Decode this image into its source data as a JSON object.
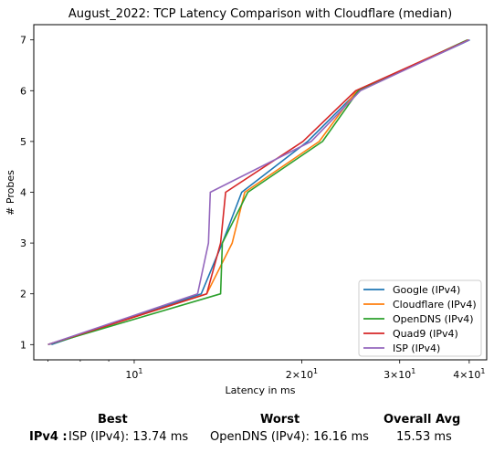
{
  "chart_data": {
    "type": "line",
    "title": "August_2022: TCP Latency Comparison with Cloudflare (median)",
    "xlabel": "Latency in ms",
    "ylabel": "# Probes",
    "xscale": "log",
    "xlim": [
      6.6,
      43
    ],
    "ylim": [
      0.7,
      7.3
    ],
    "xticks": [
      {
        "value": 10,
        "base": "10",
        "exp": "1"
      },
      {
        "value": 20,
        "base": "2×10",
        "exp": "1"
      },
      {
        "value": 30,
        "base": "3×10",
        "exp": "1"
      },
      {
        "value": 40,
        "base": "4×10",
        "exp": "1"
      }
    ],
    "yticks": [
      "1",
      "2",
      "3",
      "4",
      "5",
      "6",
      "7"
    ],
    "legend_position": "lower-right",
    "grid": false,
    "series": [
      {
        "name": "Google (IPv4)",
        "color": "#1f77b4",
        "points": [
          [
            7.1,
            1
          ],
          [
            13.2,
            2
          ],
          [
            14.4,
            3
          ],
          [
            15.6,
            4
          ],
          [
            20.5,
            5
          ],
          [
            25.3,
            6
          ],
          [
            40.1,
            7
          ]
        ]
      },
      {
        "name": "Cloudflare (IPv4)",
        "color": "#ff7f0e",
        "points": [
          [
            7.0,
            1
          ],
          [
            13.5,
            2
          ],
          [
            15.0,
            3
          ],
          [
            15.8,
            4
          ],
          [
            21.5,
            5
          ],
          [
            25.1,
            6
          ],
          [
            39.8,
            7
          ]
        ]
      },
      {
        "name": "OpenDNS (IPv4)",
        "color": "#2ca02c",
        "points": [
          [
            7.0,
            1
          ],
          [
            14.3,
            2
          ],
          [
            14.4,
            3
          ],
          [
            16.0,
            4
          ],
          [
            21.8,
            5
          ],
          [
            25.3,
            6
          ],
          [
            39.7,
            7
          ]
        ]
      },
      {
        "name": "Quad9 (IPv4)",
        "color": "#d62728",
        "points": [
          [
            7.0,
            1
          ],
          [
            13.5,
            2
          ],
          [
            14.3,
            3
          ],
          [
            14.6,
            4
          ],
          [
            20.1,
            5
          ],
          [
            25.0,
            6
          ],
          [
            39.9,
            7
          ]
        ]
      },
      {
        "name": "ISP (IPv4)",
        "color": "#9467bd",
        "points": [
          [
            7.0,
            1
          ],
          [
            13.0,
            2
          ],
          [
            13.6,
            3
          ],
          [
            13.7,
            4
          ],
          [
            20.8,
            5
          ],
          [
            25.5,
            6
          ],
          [
            40.0,
            7
          ]
        ]
      }
    ]
  },
  "summary": {
    "headers": {
      "best": "Best",
      "worst": "Worst",
      "avg": "Overall Avg"
    },
    "row_label": "IPv4 :",
    "best": "ISP (IPv4): 13.74 ms",
    "worst": "OpenDNS (IPv4): 16.16 ms",
    "avg": "15.53 ms"
  }
}
